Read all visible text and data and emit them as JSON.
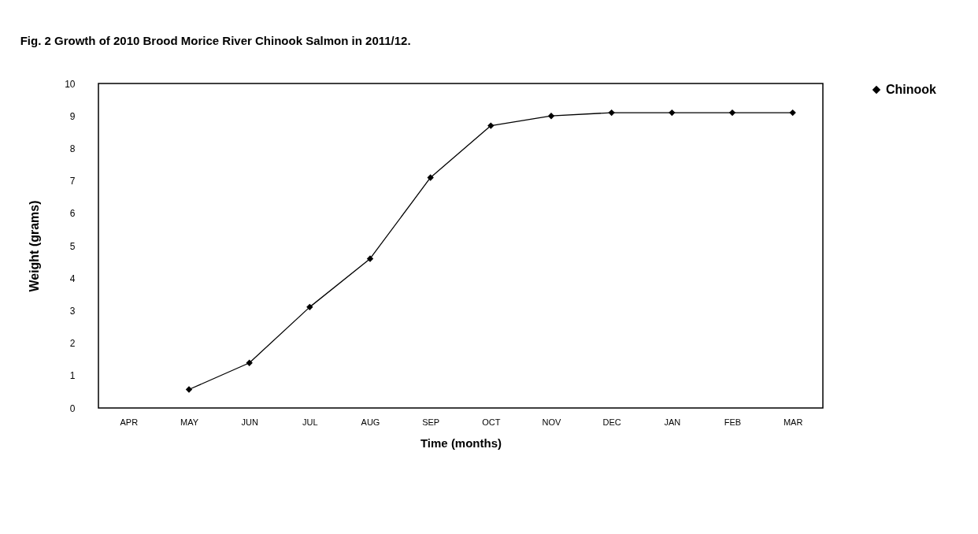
{
  "chart_data": {
    "type": "line",
    "title": "Fig. 2   Growth of 2010 Brood Morice River Chinook Salmon in 2011/12.",
    "xlabel": "Time (months)",
    "ylabel": "Weight (grams)",
    "categories": [
      "APR",
      "MAY",
      "JUN",
      "JUL",
      "AUG",
      "SEP",
      "OCT",
      "NOV",
      "DEC",
      "JAN",
      "FEB",
      "MAR"
    ],
    "series": [
      {
        "name": "Chinook",
        "color": "#000000",
        "values": [
          null,
          0.57,
          1.39,
          3.11,
          4.6,
          7.1,
          8.7,
          9.0,
          9.1,
          9.1,
          9.1,
          9.1
        ]
      }
    ],
    "ylim": [
      0,
      10
    ],
    "yticks": [
      0,
      1,
      2,
      3,
      4,
      5,
      6,
      7,
      8,
      9,
      10
    ],
    "grid": false,
    "legend": "right",
    "marker": "diamond",
    "line_style": "solid"
  }
}
